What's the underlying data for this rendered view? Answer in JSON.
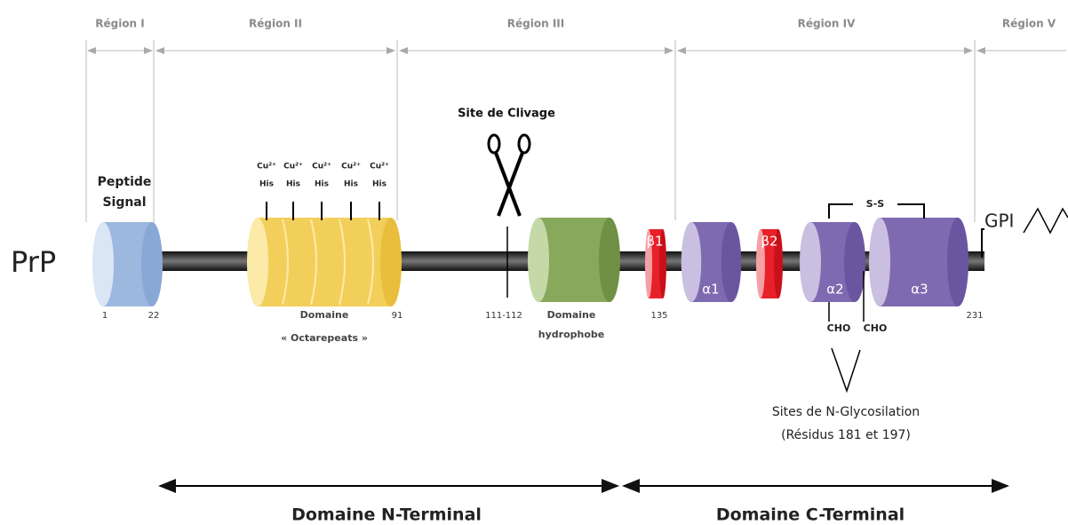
{
  "protein": "PrP",
  "regions": [
    "Région I",
    "Région II",
    "Région III",
    "Région IV",
    "Région V"
  ],
  "cleavage_site": "Site de Clivage",
  "signal_peptide": [
    "Peptide",
    "Signal"
  ],
  "octarepeat_sites": [
    {
      "ion": "Cu²⁺",
      "residue": "His"
    },
    {
      "ion": "Cu²⁺",
      "residue": "His"
    },
    {
      "ion": "Cu²⁺",
      "residue": "His"
    },
    {
      "ion": "Cu²⁺",
      "residue": "His"
    },
    {
      "ion": "Cu²⁺",
      "residue": "His"
    }
  ],
  "domains": {
    "octarepeats": [
      "Domaine",
      "« Octarepeats »"
    ],
    "hydrophobic": [
      "Domaine",
      "hydrophobe"
    ]
  },
  "structures": [
    "β1",
    "α1",
    "β2",
    "α2",
    "α3"
  ],
  "disulfide": "S-S",
  "anchor": "GPI",
  "positions": [
    "1",
    "22",
    "91",
    "111-112",
    "135",
    "231"
  ],
  "glycans": [
    "CHO",
    "CHO"
  ],
  "glycosylation": [
    "Sites de N-Glycosilation",
    "(Résidus 181 et 197)"
  ],
  "terminal_domains": [
    "Domaine N-Terminal",
    "Domaine C-Terminal"
  ]
}
